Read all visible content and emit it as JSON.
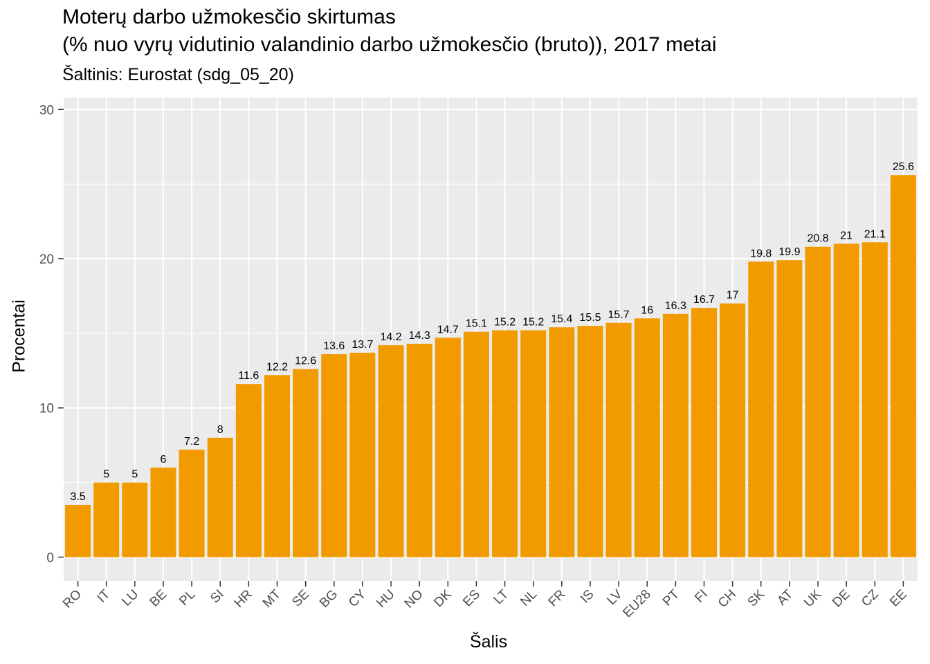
{
  "chart_data": {
    "type": "bar",
    "title": "Moterų darbo užmokesčio skirtumas",
    "title_line2": "(% nuo vyrų vidutinio valandinio darbo užmokesčio (bruto)), 2017 metai",
    "subtitle": "Šaltinis: Eurostat (sdg_05_20)",
    "xlabel": "Šalis",
    "ylabel": "Procentai",
    "ylim": [
      -1.6,
      30.8
    ],
    "yticks": [
      0,
      10,
      20,
      30
    ],
    "grid": true,
    "legend": "none",
    "bar_color": "#F29B00",
    "panel_color": "#EBEBEB",
    "categories": [
      "RO",
      "IT",
      "LU",
      "BE",
      "PL",
      "SI",
      "HR",
      "MT",
      "SE",
      "BG",
      "CY",
      "HU",
      "NO",
      "DK",
      "ES",
      "LT",
      "NL",
      "FR",
      "IS",
      "LV",
      "EU28",
      "PT",
      "FI",
      "CH",
      "SK",
      "AT",
      "UK",
      "DE",
      "CZ",
      "EE"
    ],
    "values": [
      3.5,
      5,
      5,
      6,
      7.2,
      8,
      11.6,
      12.2,
      12.6,
      13.6,
      13.7,
      14.2,
      14.3,
      14.7,
      15.1,
      15.2,
      15.2,
      15.4,
      15.5,
      15.7,
      16,
      16.3,
      16.7,
      17,
      19.8,
      19.9,
      20.8,
      21,
      21.1,
      25.6
    ],
    "value_labels": [
      "3.5",
      "5",
      "5",
      "6",
      "7.2",
      "8",
      "11.6",
      "12.2",
      "12.6",
      "13.6",
      "13.7",
      "14.2",
      "14.3",
      "14.7",
      "15.1",
      "15.2",
      "15.2",
      "15.4",
      "15.5",
      "15.7",
      "16",
      "16.3",
      "16.7",
      "17",
      "19.8",
      "19.9",
      "20.8",
      "21",
      "21.1",
      "25.6"
    ]
  }
}
